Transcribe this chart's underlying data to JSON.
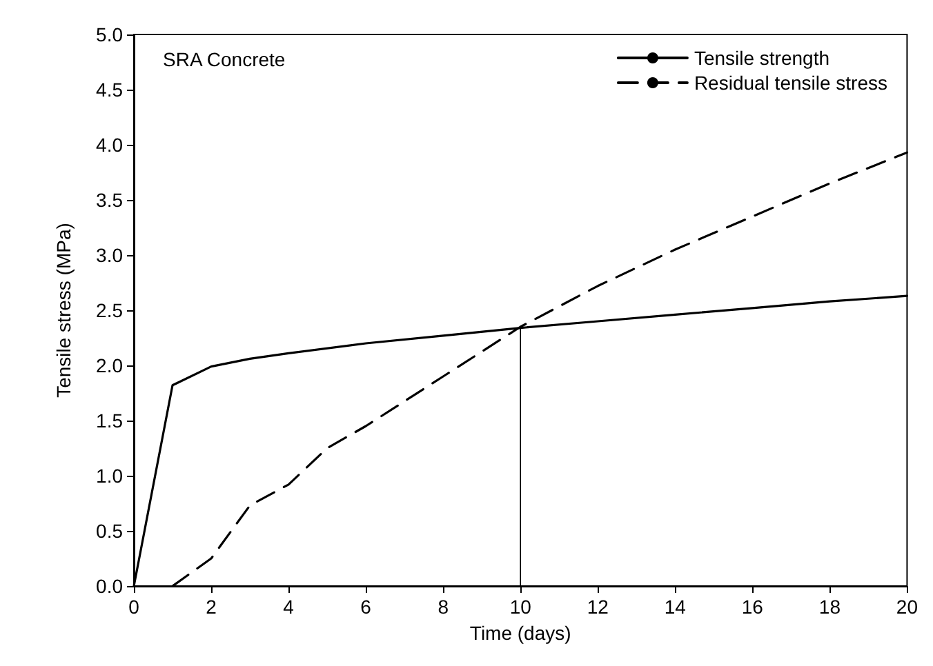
{
  "chart_data": {
    "type": "line",
    "xlabel": "Time (days)",
    "ylabel": "Tensile stress (MPa)",
    "annotations": [
      "SRA Concrete"
    ],
    "xlim": [
      0,
      20
    ],
    "xticks": [
      0,
      2,
      4,
      6,
      8,
      10,
      12,
      14,
      16,
      18,
      20
    ],
    "ylim": [
      0,
      5
    ],
    "yticks": [
      {
        "value": 0,
        "label": "0.0"
      },
      {
        "value": 0.5,
        "label": "0.5"
      },
      {
        "value": 1,
        "label": "1.0"
      },
      {
        "value": 1.5,
        "label": "1.5"
      },
      {
        "value": 2,
        "label": "2.0"
      },
      {
        "value": 2.5,
        "label": "2.5"
      },
      {
        "value": 3,
        "label": "3.0"
      },
      {
        "value": 3.5,
        "label": "3.5"
      },
      {
        "value": 4,
        "label": "4.0"
      },
      {
        "value": 4.5,
        "label": "4.5"
      },
      {
        "value": 5,
        "label": "5.0"
      }
    ],
    "grid": false,
    "legend": "top right",
    "marker": "none",
    "series": [
      {
        "name": "Tensile strength",
        "color": "#000000",
        "line_style": "solid",
        "x": [
          0,
          1,
          2,
          3,
          4,
          6,
          8,
          10,
          12,
          14,
          16,
          18,
          20
        ],
        "values": [
          0,
          1.82,
          1.99,
          2.06,
          2.11,
          2.2,
          2.27,
          2.34,
          2.4,
          2.46,
          2.52,
          2.58,
          2.63
        ]
      },
      {
        "name": "Residual tensile stress",
        "color": "#000000",
        "line_style": "dashed",
        "x": [
          1,
          2,
          3,
          4,
          5,
          6,
          8,
          10,
          12,
          14,
          16,
          18,
          20
        ],
        "values": [
          0,
          0.25,
          0.73,
          0.92,
          1.25,
          1.45,
          1.9,
          2.35,
          2.72,
          3.05,
          3.35,
          3.65,
          3.93
        ]
      },
      {
        "color": "#000000",
        "line_style": "solid",
        "x": [
          10,
          10
        ],
        "values": [
          0,
          2.34
        ]
      }
    ]
  }
}
